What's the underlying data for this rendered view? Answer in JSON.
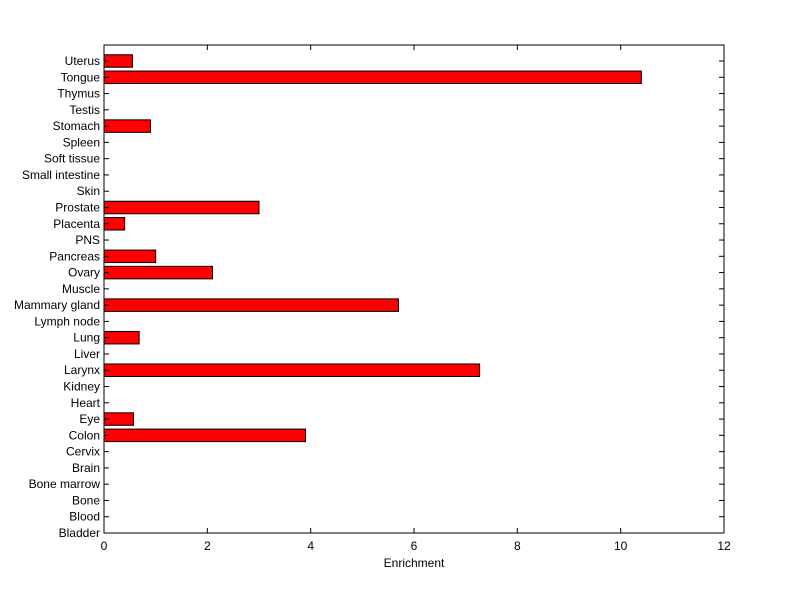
{
  "chart_data": {
    "type": "bar",
    "orientation": "horizontal",
    "title": "",
    "xlabel": "Enrichment",
    "ylabel": "",
    "xlim": [
      0,
      12
    ],
    "xticks": [
      0,
      2,
      4,
      6,
      8,
      10,
      12
    ],
    "grid": false,
    "bar_color": "#ff0000",
    "bar_edge_color": "#000000",
    "categories": [
      "Uterus",
      "Tongue",
      "Thymus",
      "Testis",
      "Stomach",
      "Spleen",
      "Soft tissue",
      "Small intestine",
      "Skin",
      "Prostate",
      "Placenta",
      "PNS",
      "Pancreas",
      "Ovary",
      "Muscle",
      "Mammary gland",
      "Lymph node",
      "Lung",
      "Liver",
      "Larynx",
      "Kidney",
      "Heart",
      "Eye",
      "Colon",
      "Cervix",
      "Brain",
      "Bone marrow",
      "Bone",
      "Blood",
      "Bladder"
    ],
    "values": [
      0.55,
      10.4,
      0,
      0,
      0.9,
      0,
      0,
      0,
      0,
      3.0,
      0.4,
      0,
      1.0,
      2.1,
      0,
      5.7,
      0,
      0.68,
      0,
      7.27,
      0,
      0,
      0.57,
      3.9,
      0,
      0,
      0,
      0,
      0,
      0
    ]
  }
}
